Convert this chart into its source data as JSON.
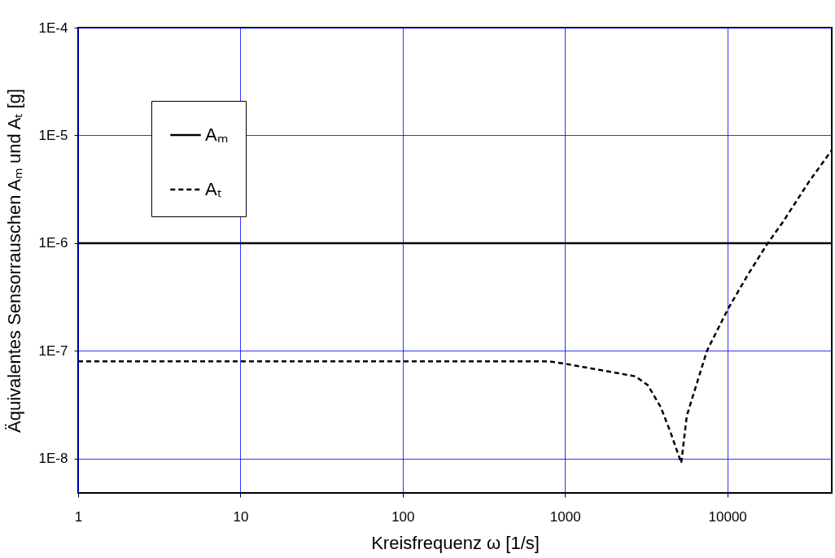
{
  "chart_data": {
    "type": "line",
    "xlabel": "Kreisfrequenz ω [1/s]",
    "ylabel": "Äquivalentes Sensorrauschen Aₘ und Aₜ [g]",
    "log": "xy",
    "grid": true,
    "legend": "top left",
    "xlim": [
      1,
      44000
    ],
    "xticks": [
      1,
      10,
      100,
      1000,
      10000
    ],
    "ylim": [
      4.8e-09,
      0.0001
    ],
    "yticks": [
      {
        "value": 1e-08,
        "label": "1E-8"
      },
      {
        "value": 1e-07,
        "label": "1E-7"
      },
      {
        "value": 1e-06,
        "label": "1E-6"
      },
      {
        "value": 1e-05,
        "label": "1E-5"
      },
      {
        "value": 0.0001,
        "label": "1E-4"
      }
    ],
    "series": [
      {
        "name": "Aₘ",
        "color": "#000000",
        "line_style": "solid",
        "x": [
          1,
          44000
        ],
        "values": [
          1e-06,
          1e-06
        ]
      },
      {
        "name": "Aₜ",
        "color": "#000000",
        "line_style": "dashed",
        "x": [
          1,
          100,
          790,
          1000,
          2710,
          3240,
          3890,
          4470,
          5090,
          5200,
          5630,
          6570,
          7490,
          10100,
          13400,
          17600,
          22000,
          31800,
          44000
        ],
        "values": [
          8e-08,
          8e-08,
          8e-08,
          7.6e-08,
          5.8e-08,
          4.8e-08,
          3e-08,
          1.75e-08,
          1e-08,
          9.1e-09,
          2.5e-08,
          5.3e-08,
          1e-07,
          2.45e-07,
          5.1e-07,
          9.8e-07,
          1.57e-06,
          3.7e-06,
          7.3e-06
        ]
      }
    ]
  }
}
